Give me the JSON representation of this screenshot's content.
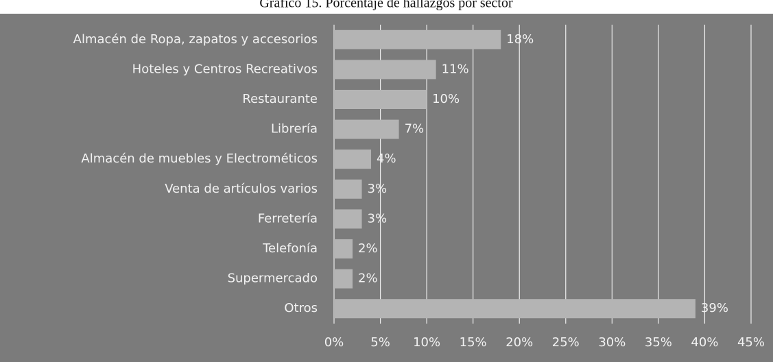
{
  "chart_data": {
    "type": "bar",
    "orientation": "horizontal",
    "title": "Gráfico 15. Porcentaje de hallazgos por sector",
    "categories": [
      "Almacén de Ropa, zapatos y accesorios",
      "Hoteles y Centros Recreativos",
      "Restaurante",
      "Librería",
      "Almacén de muebles y Electrométicos",
      "Venta de artículos varios",
      "Ferretería",
      "Telefonía",
      "Supermercado",
      "Otros"
    ],
    "values": [
      18,
      11,
      10,
      7,
      4,
      3,
      3,
      2,
      2,
      39
    ],
    "value_labels": [
      "18%",
      "11%",
      "10%",
      "7%",
      "4%",
      "3%",
      "3%",
      "2%",
      "2%",
      "39%"
    ],
    "color": "#b4b4b4",
    "xlim": [
      0,
      45
    ],
    "xticks": [
      {
        "value": 0,
        "label": "0%"
      },
      {
        "value": 5,
        "label": "5%"
      },
      {
        "value": 10,
        "label": "10%"
      },
      {
        "value": 15,
        "label": "15%"
      },
      {
        "value": 20,
        "label": "20%"
      },
      {
        "value": 25,
        "label": "25%"
      },
      {
        "value": 30,
        "label": "30%"
      },
      {
        "value": 35,
        "label": "35%"
      },
      {
        "value": 40,
        "label": "40%"
      },
      {
        "value": 45,
        "label": "45%"
      }
    ],
    "grid": true
  }
}
